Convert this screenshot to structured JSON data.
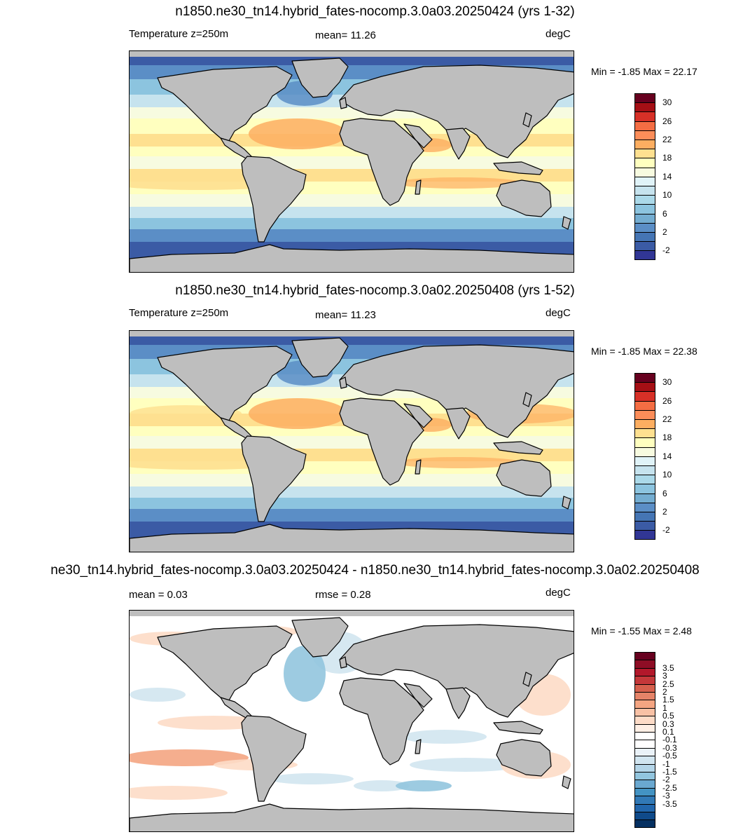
{
  "panels": [
    {
      "title": "n1850.ne30_tn14.hybrid_fates-nocomp.3.0a03.20250424 (yrs 1-32)",
      "left_text": "Temperature z=250m",
      "center_text": "mean=  11.26",
      "units": "degC",
      "minmax": "Min =  -1.85 Max =  22.17",
      "field": "abs",
      "colorbar": {
        "colors": [
          "#67001f",
          "#a50f15",
          "#d73027",
          "#f46d43",
          "#fc8d59",
          "#fdae61",
          "#fee090",
          "#ffffbf",
          "#f7fbe0",
          "#e0f3f8",
          "#c6e3ee",
          "#abd9e9",
          "#8cc4df",
          "#74add1",
          "#5b8ec6",
          "#4575b4",
          "#3b5ba5",
          "#313695"
        ],
        "labels": [
          "30",
          "26",
          "22",
          "18",
          "14",
          "10",
          "6",
          "2",
          "-2"
        ]
      }
    },
    {
      "title": "n1850.ne30_tn14.hybrid_fates-nocomp.3.0a02.20250408 (yrs 1-52)",
      "left_text": "Temperature z=250m",
      "center_text": "mean=  11.23",
      "units": "degC",
      "minmax": "Min =  -1.85 Max =  22.38",
      "field": "abs",
      "colorbar": {
        "colors": [
          "#67001f",
          "#a50f15",
          "#d73027",
          "#f46d43",
          "#fc8d59",
          "#fdae61",
          "#fee090",
          "#ffffbf",
          "#f7fbe0",
          "#e0f3f8",
          "#c6e3ee",
          "#abd9e9",
          "#8cc4df",
          "#74add1",
          "#5b8ec6",
          "#4575b4",
          "#3b5ba5",
          "#313695"
        ],
        "labels": [
          "30",
          "26",
          "22",
          "18",
          "14",
          "10",
          "6",
          "2",
          "-2"
        ]
      }
    },
    {
      "title": "ne30_tn14.hybrid_fates-nocomp.3.0a03.20250424 - n1850.ne30_tn14.hybrid_fates-nocomp.3.0a02.20250408",
      "left_text": "mean =   0.03",
      "center_text": "rmse =   0.28",
      "units": "degC",
      "minmax": "Min =  -1.55 Max =   2.48",
      "field": "diff",
      "colorbar": {
        "colors": [
          "#67001f",
          "#8e0d25",
          "#b2182b",
          "#c4383a",
          "#d6604d",
          "#e58368",
          "#f4a582",
          "#f8c1a5",
          "#fddbc7",
          "#feefe5",
          "#ffffff",
          "#ffffff",
          "#eaf2f8",
          "#d1e5f0",
          "#b4d5e8",
          "#92c5de",
          "#6aa8d0",
          "#4393c3",
          "#3179b6",
          "#2166ac",
          "#0f4a8a",
          "#053061"
        ],
        "labels": [
          "3.5",
          "3",
          "2.5",
          "2",
          "1.5",
          "1",
          "0.5",
          "0.3",
          "0.1",
          "-0.1",
          "-0.3",
          "-0.5",
          "-1",
          "-1.5",
          "-2",
          "-2.5",
          "-3",
          "-3.5"
        ]
      }
    }
  ],
  "land_color": "#bebebe"
}
